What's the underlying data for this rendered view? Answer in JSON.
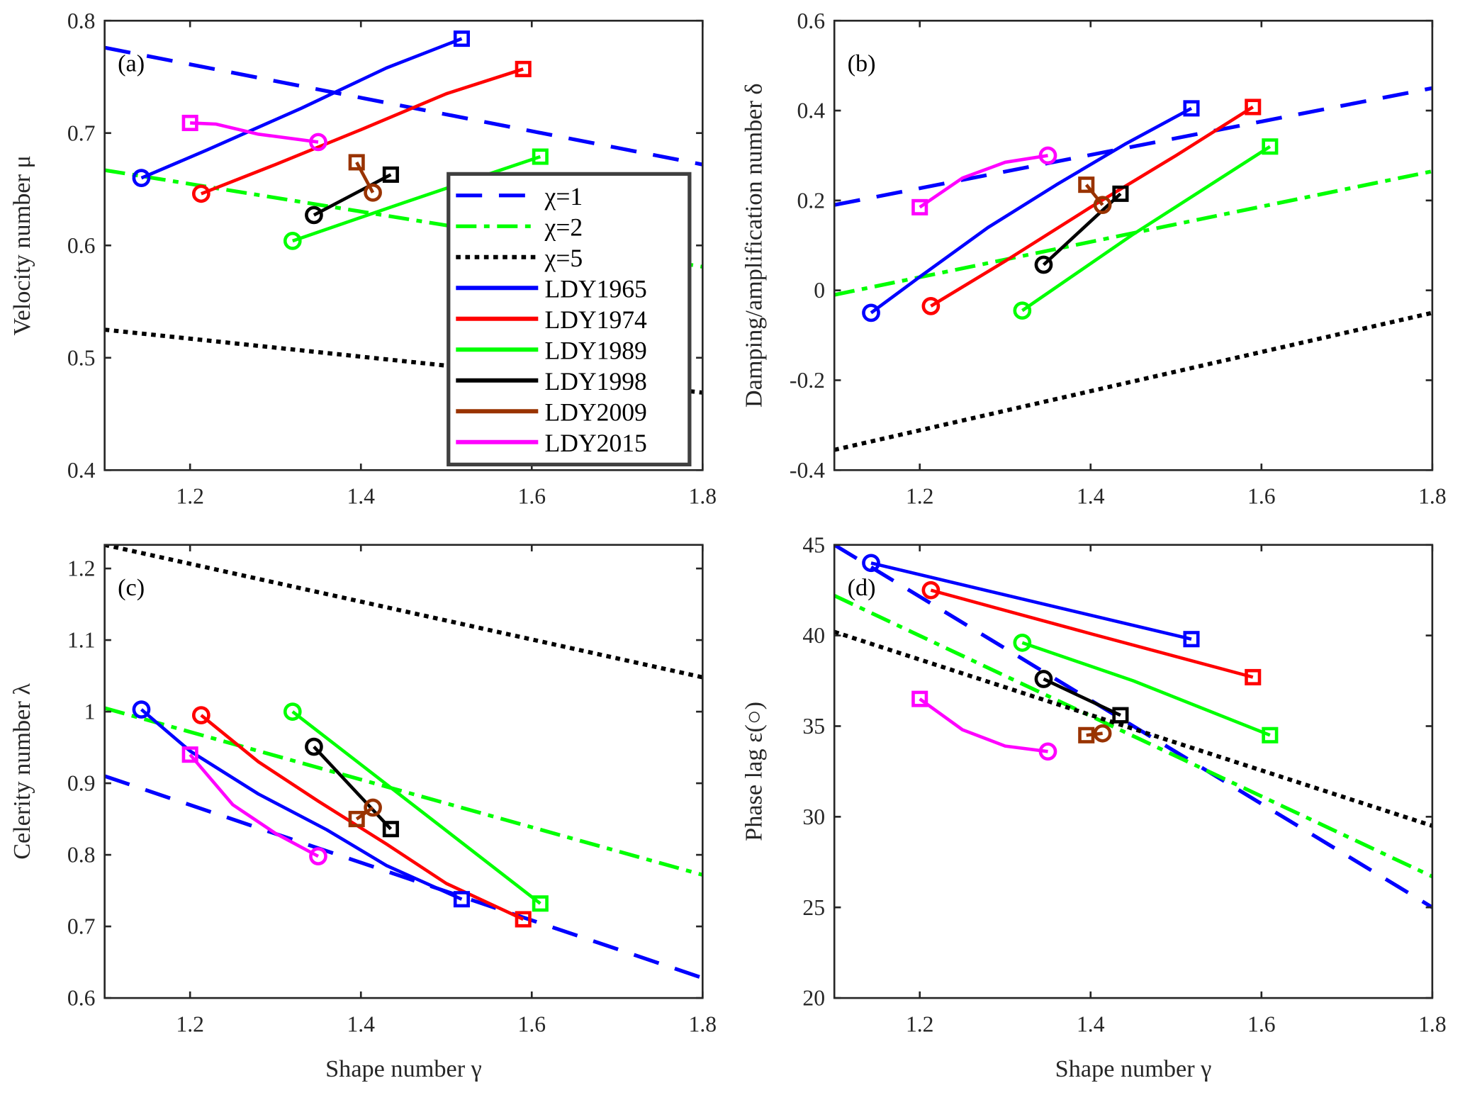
{
  "chart_data": {
    "type": "line",
    "legend": {
      "placement": "center",
      "entries": [
        {
          "label": "χ=1",
          "color": "#0000ff",
          "style": "dashed"
        },
        {
          "label": "χ=2",
          "color": "#00ff00",
          "style": "dashdot"
        },
        {
          "label": "χ=5",
          "color": "#000000",
          "style": "dotted"
        },
        {
          "label": "LDY1965",
          "color": "#0000ff",
          "style": "solid"
        },
        {
          "label": "LDY1974",
          "color": "#ff0000",
          "style": "solid"
        },
        {
          "label": "LDY1989",
          "color": "#00ff00",
          "style": "solid"
        },
        {
          "label": "LDY1998",
          "color": "#000000",
          "style": "solid"
        },
        {
          "label": "LDY2009",
          "color": "#993300",
          "style": "solid"
        },
        {
          "label": "LDY2015",
          "color": "#ff00ff",
          "style": "solid"
        }
      ]
    },
    "panels": [
      {
        "tag": "(a)",
        "xlabel": "",
        "ylabel": "Velocity number  μ",
        "xlim": [
          1.1,
          1.8
        ],
        "ylim": [
          0.4,
          0.8
        ],
        "xticks": [
          1.2,
          1.4,
          1.6,
          1.8
        ],
        "yticks": [
          0.4,
          0.5,
          0.6,
          0.7,
          0.8
        ],
        "ytick_labels": [
          "0.4",
          "0.5",
          "0.6",
          "0.7",
          "0.8"
        ],
        "series": [
          {
            "name": "χ=1",
            "x": [
              1.1,
              1.8
            ],
            "y": [
              0.776,
              0.672
            ]
          },
          {
            "name": "χ=2",
            "x": [
              1.1,
              1.8
            ],
            "y": [
              0.667,
              0.581
            ]
          },
          {
            "name": "χ=5",
            "x": [
              1.1,
              1.8
            ],
            "y": [
              0.525,
              0.469
            ]
          },
          {
            "name": "LDY1965",
            "x": [
              1.143,
              1.22,
              1.33,
              1.43,
              1.518
            ],
            "y": [
              0.66,
              0.685,
              0.722,
              0.758,
              0.784
            ]
          },
          {
            "name": "LDY1974",
            "x": [
              1.213,
              1.3,
              1.4,
              1.5,
              1.59
            ],
            "y": [
              0.646,
              0.672,
              0.703,
              0.735,
              0.757
            ]
          },
          {
            "name": "LDY1989",
            "x": [
              1.32,
              1.45,
              1.61
            ],
            "y": [
              0.604,
              0.638,
              0.679
            ]
          },
          {
            "name": "LDY1998",
            "x": [
              1.345,
              1.435
            ],
            "y": [
              0.627,
              0.663
            ]
          },
          {
            "name": "LDY2009",
            "x": [
              1.414,
              1.395
            ],
            "y": [
              0.647,
              0.674
            ]
          },
          {
            "name": "LDY2015",
            "x": [
              1.35,
              1.28,
              1.23,
              1.2
            ],
            "y": [
              0.692,
              0.699,
              0.708,
              0.709
            ]
          }
        ]
      },
      {
        "tag": "(b)",
        "xlabel": "",
        "ylabel": "Damping/amplification number  δ",
        "xlim": [
          1.1,
          1.8
        ],
        "ylim": [
          -0.4,
          0.6
        ],
        "xticks": [
          1.2,
          1.4,
          1.6,
          1.8
        ],
        "yticks": [
          -0.4,
          -0.2,
          0,
          0.2,
          0.4,
          0.6
        ],
        "ytick_labels": [
          "-0.4",
          "-0.2",
          "0",
          "0.2",
          "0.4",
          "0.6"
        ],
        "series": [
          {
            "name": "χ=1",
            "x": [
              1.1,
              1.8
            ],
            "y": [
              0.19,
              0.45
            ]
          },
          {
            "name": "χ=2",
            "x": [
              1.1,
              1.8
            ],
            "y": [
              -0.01,
              0.265
            ]
          },
          {
            "name": "χ=5",
            "x": [
              1.1,
              1.8
            ],
            "y": [
              -0.355,
              -0.05
            ]
          },
          {
            "name": "LDY1965",
            "x": [
              1.143,
              1.2,
              1.28,
              1.36,
              1.44,
              1.518
            ],
            "y": [
              -0.05,
              0.03,
              0.14,
              0.235,
              0.325,
              0.405
            ]
          },
          {
            "name": "LDY1974",
            "x": [
              1.213,
              1.3,
              1.4,
              1.5,
              1.59
            ],
            "y": [
              -0.035,
              0.065,
              0.185,
              0.3,
              0.408
            ]
          },
          {
            "name": "LDY1989",
            "x": [
              1.32,
              1.45,
              1.61
            ],
            "y": [
              -0.045,
              0.125,
              0.32
            ]
          },
          {
            "name": "LDY1998",
            "x": [
              1.345,
              1.435
            ],
            "y": [
              0.057,
              0.215
            ]
          },
          {
            "name": "LDY2009",
            "x": [
              1.414,
              1.395
            ],
            "y": [
              0.19,
              0.235
            ]
          },
          {
            "name": "LDY2015",
            "x": [
              1.35,
              1.3,
              1.25,
              1.2
            ],
            "y": [
              0.3,
              0.285,
              0.25,
              0.185
            ]
          }
        ]
      },
      {
        "tag": "(c)",
        "xlabel": "Shape number  γ",
        "ylabel": "Celerity number  λ",
        "xlim": [
          1.1,
          1.8
        ],
        "ylim": [
          0.6,
          1.233
        ],
        "xticks": [
          1.2,
          1.4,
          1.6,
          1.8
        ],
        "yticks": [
          0.6,
          0.7,
          0.8,
          0.9,
          1.0,
          1.1,
          1.2
        ],
        "ytick_labels": [
          "0.6",
          "0.7",
          "0.8",
          "0.9",
          "1",
          "1.1",
          "1.2"
        ],
        "series": [
          {
            "name": "χ=1",
            "x": [
              1.1,
              1.8
            ],
            "y": [
              0.91,
              0.628
            ]
          },
          {
            "name": "χ=2",
            "x": [
              1.1,
              1.8
            ],
            "y": [
              1.005,
              0.772
            ]
          },
          {
            "name": "χ=5",
            "x": [
              1.1,
              1.8
            ],
            "y": [
              1.233,
              1.048
            ]
          },
          {
            "name": "LDY1965",
            "x": [
              1.143,
              1.2,
              1.28,
              1.36,
              1.43,
              1.518
            ],
            "y": [
              1.003,
              0.945,
              0.885,
              0.835,
              0.785,
              0.738
            ]
          },
          {
            "name": "LDY1974",
            "x": [
              1.213,
              1.28,
              1.35,
              1.43,
              1.5,
              1.59
            ],
            "y": [
              0.995,
              0.93,
              0.875,
              0.815,
              0.76,
              0.71
            ]
          },
          {
            "name": "LDY1989",
            "x": [
              1.32,
              1.45,
              1.61
            ],
            "y": [
              1.0,
              0.88,
              0.732
            ]
          },
          {
            "name": "LDY1998",
            "x": [
              1.345,
              1.435
            ],
            "y": [
              0.951,
              0.836
            ]
          },
          {
            "name": "LDY2009",
            "x": [
              1.414,
              1.395
            ],
            "y": [
              0.866,
              0.85
            ]
          },
          {
            "name": "LDY2015",
            "x": [
              1.35,
              1.3,
              1.25,
              1.2
            ],
            "y": [
              0.798,
              0.83,
              0.87,
              0.94
            ]
          }
        ]
      },
      {
        "tag": "(d)",
        "xlabel": "Shape number  γ",
        "ylabel": "Phase lag ε(○)",
        "xlim": [
          1.1,
          1.8
        ],
        "ylim": [
          20,
          45
        ],
        "xticks": [
          1.2,
          1.4,
          1.6,
          1.8
        ],
        "yticks": [
          20,
          25,
          30,
          35,
          40,
          45
        ],
        "ytick_labels": [
          "20",
          "25",
          "30",
          "35",
          "40",
          "45"
        ],
        "series": [
          {
            "name": "χ=1",
            "x": [
              1.1,
              1.8
            ],
            "y": [
              45,
              25
            ]
          },
          {
            "name": "χ=2",
            "x": [
              1.1,
              1.8
            ],
            "y": [
              42.2,
              26.7
            ]
          },
          {
            "name": "χ=5",
            "x": [
              1.1,
              1.8
            ],
            "y": [
              40.2,
              29.5
            ]
          },
          {
            "name": "LDY1965",
            "x": [
              1.143,
              1.33,
              1.518
            ],
            "y": [
              44,
              41.9,
              39.8
            ]
          },
          {
            "name": "LDY1974",
            "x": [
              1.213,
              1.4,
              1.59
            ],
            "y": [
              42.5,
              40.1,
              37.7
            ]
          },
          {
            "name": "LDY1989",
            "x": [
              1.32,
              1.45,
              1.61
            ],
            "y": [
              39.6,
              37.5,
              34.5
            ]
          },
          {
            "name": "LDY1998",
            "x": [
              1.345,
              1.435
            ],
            "y": [
              37.6,
              35.6
            ]
          },
          {
            "name": "LDY2009",
            "x": [
              1.414,
              1.395
            ],
            "y": [
              34.6,
              34.5
            ]
          },
          {
            "name": "LDY2015",
            "x": [
              1.35,
              1.3,
              1.25,
              1.2
            ],
            "y": [
              33.6,
              33.9,
              34.8,
              36.5
            ]
          }
        ]
      }
    ]
  }
}
